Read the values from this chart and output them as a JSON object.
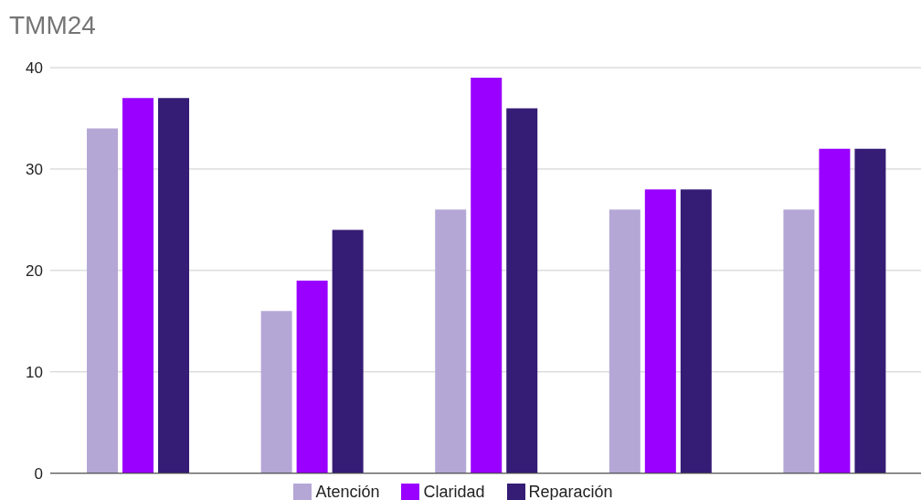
{
  "chart_data": {
    "type": "bar",
    "title": "TMM24",
    "categories": [
      null,
      null,
      null,
      null,
      null
    ],
    "series": [
      {
        "name": "Atención",
        "color": "#b4a7d6",
        "values": [
          34,
          16,
          26,
          26,
          26
        ]
      },
      {
        "name": "Claridad",
        "color": "#9900ff",
        "values": [
          37,
          19,
          39,
          28,
          32
        ]
      },
      {
        "name": "Reparación",
        "color": "#351c75",
        "values": [
          37,
          24,
          36,
          28,
          32
        ]
      }
    ],
    "ylim": [
      0,
      40
    ],
    "yticks": [
      0,
      10,
      20,
      30,
      40
    ],
    "grid": "y",
    "legend": "bottom"
  }
}
